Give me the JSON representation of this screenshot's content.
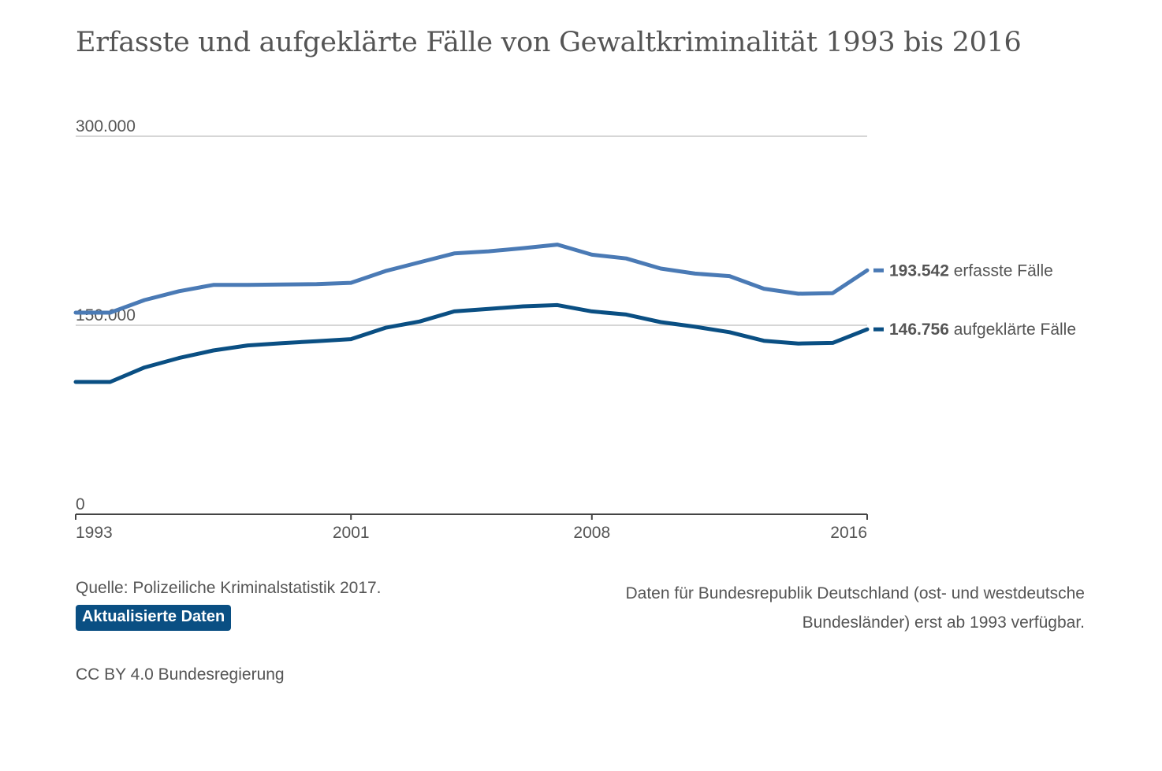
{
  "title": "Erfasste und aufgeklärte Fälle von Gewaltkriminalität 1993 bis 2016",
  "source_text": "Quelle: Polizeiliche Kriminalstatistik 2017.",
  "update_button": "Aktualisierte Daten",
  "note": "Daten für Bundesrepublik Deutschland (ost- und westdeutsche Bundesländer) erst ab 1993 verfügbar.",
  "license": "CC BY 4.0 Bundesregierung",
  "chart_data": {
    "type": "line",
    "ylim": [
      0,
      300000
    ],
    "y_ticks": [
      {
        "value": 0,
        "label": "0"
      },
      {
        "value": 150000,
        "label": "150.000"
      },
      {
        "value": 300000,
        "label": "300.000"
      }
    ],
    "x_ticks": [
      1993,
      2001,
      2008,
      2016
    ],
    "x": [
      1993,
      1994,
      1995,
      1996,
      1997,
      1998,
      1999,
      2000,
      2001,
      2002,
      2003,
      2004,
      2005,
      2006,
      2007,
      2008,
      2009,
      2010,
      2011,
      2012,
      2013,
      2014,
      2015,
      2016
    ],
    "grid": "horizontal",
    "series": [
      {
        "name": "erfasste Fälle",
        "color": "#4a7ab5",
        "end_value_label": "193.542",
        "values": [
          160000,
          160000,
          170000,
          177000,
          182000,
          182000,
          182300,
          182600,
          183700,
          193000,
          200000,
          207000,
          208700,
          211200,
          214000,
          206000,
          203000,
          195000,
          191000,
          189000,
          179000,
          175000,
          175500,
          193542
        ]
      },
      {
        "name": "aufgeklärte Fälle",
        "color": "#0a4f83",
        "end_value_label": "146.756",
        "values": [
          105000,
          105000,
          116500,
          124000,
          130000,
          134000,
          135800,
          137300,
          139000,
          148000,
          153000,
          161000,
          163000,
          165000,
          166000,
          161000,
          158500,
          152500,
          148800,
          144500,
          137700,
          135500,
          136000,
          146756
        ]
      }
    ]
  }
}
